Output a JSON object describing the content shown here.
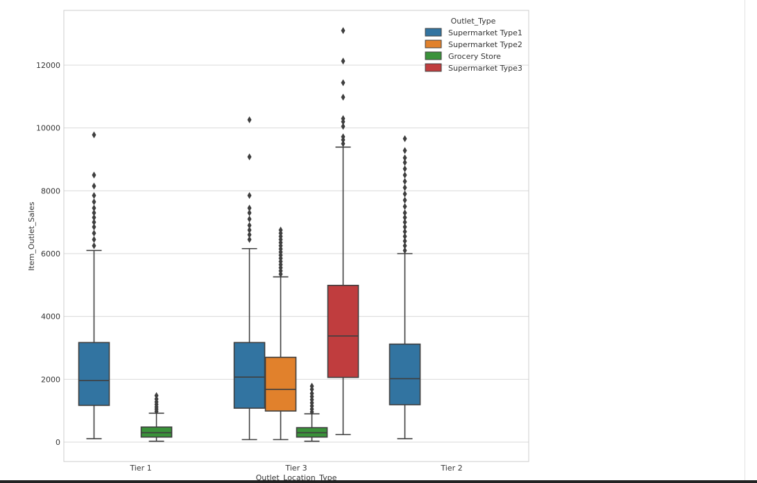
{
  "chart_data": {
    "type": "box",
    "xlabel": "Outlet_Location_Type",
    "ylabel": "Item_Outlet_Sales",
    "categories": [
      "Tier 1",
      "Tier 3",
      "Tier 2"
    ],
    "ylim": [
      -600,
      13600
    ],
    "yticks": [
      0,
      2000,
      4000,
      6000,
      8000,
      10000,
      12000
    ],
    "ytick_labels": [
      "0",
      "2000",
      "4000",
      "6000",
      "8000",
      "10000",
      "12000"
    ],
    "grid": true,
    "legend": {
      "title": "Outlet_Type",
      "position": "top-right",
      "entries": [
        {
          "name": "Supermarket Type1",
          "color": "#3274a1"
        },
        {
          "name": "Supermarket Type2",
          "color": "#e1812c"
        },
        {
          "name": "Grocery Store",
          "color": "#3a923a"
        },
        {
          "name": "Supermarket Type3",
          "color": "#c03d3e"
        }
      ]
    },
    "boxes": [
      {
        "category": "Tier 1",
        "series": "Supermarket Type1",
        "whisker_low": 110,
        "q1": 1170,
        "median": 1960,
        "q3": 3170,
        "whisker_high": 6100,
        "outliers": [
          6250,
          6450,
          6650,
          6850,
          7000,
          7150,
          7300,
          7450,
          7650,
          7850,
          8150,
          8500,
          9780
        ]
      },
      {
        "category": "Tier 1",
        "series": "Grocery Store",
        "whisker_low": 30,
        "q1": 160,
        "median": 300,
        "q3": 480,
        "whisker_high": 920,
        "outliers": [
          980,
          1050,
          1120,
          1200,
          1280,
          1370,
          1480
        ]
      },
      {
        "category": "Tier 3",
        "series": "Supermarket Type1",
        "whisker_low": 80,
        "q1": 1080,
        "median": 2070,
        "q3": 3170,
        "whisker_high": 6160,
        "outliers": [
          6450,
          6600,
          6750,
          6900,
          7100,
          7300,
          7450,
          7850,
          9080,
          10260
        ]
      },
      {
        "category": "Tier 3",
        "series": "Supermarket Type2",
        "whisker_low": 80,
        "q1": 990,
        "median": 1680,
        "q3": 2700,
        "whisker_high": 5260,
        "outliers": [
          5350,
          5450,
          5550,
          5650,
          5750,
          5850,
          5950,
          6050,
          6150,
          6250,
          6350,
          6450,
          6550,
          6650,
          6750
        ]
      },
      {
        "category": "Tier 3",
        "series": "Grocery Store",
        "whisker_low": 30,
        "q1": 160,
        "median": 300,
        "q3": 460,
        "whisker_high": 900,
        "outliers": [
          960,
          1050,
          1150,
          1250,
          1350,
          1450,
          1550,
          1680,
          1780
        ]
      },
      {
        "category": "Tier 3",
        "series": "Supermarket Type3",
        "whisker_low": 240,
        "q1": 2060,
        "median": 3380,
        "q3": 4990,
        "whisker_high": 9390,
        "outliers": [
          9500,
          9620,
          9720,
          10050,
          10200,
          10300,
          10980,
          11440,
          12130,
          13100
        ]
      },
      {
        "category": "Tier 2",
        "series": "Supermarket Type1",
        "whisker_low": 110,
        "q1": 1190,
        "median": 2020,
        "q3": 3120,
        "whisker_high": 6000,
        "outliers": [
          6100,
          6250,
          6400,
          6550,
          6700,
          6850,
          7000,
          7150,
          7300,
          7500,
          7700,
          7900,
          8100,
          8300,
          8500,
          8700,
          8900,
          9050,
          9280,
          9660
        ]
      }
    ]
  }
}
